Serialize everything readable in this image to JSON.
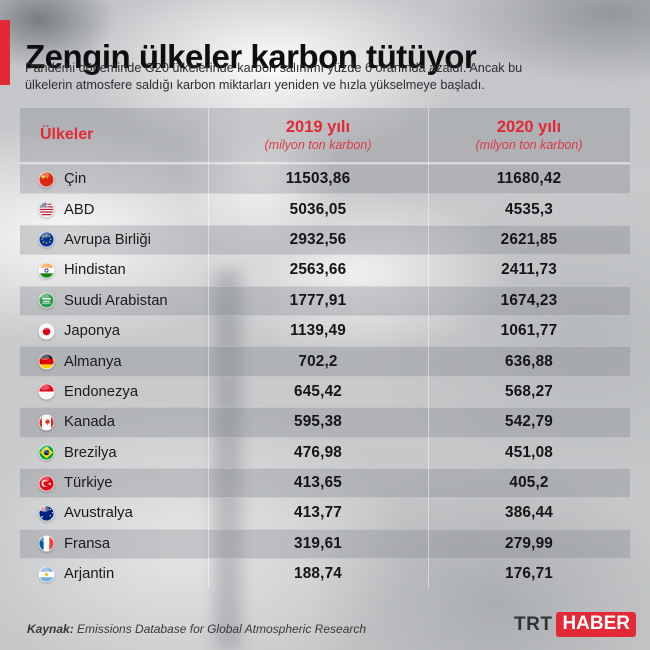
{
  "accent_red": "#e22936",
  "header": {
    "title": "Zengin ülkeler karbon tütüyor",
    "subtitle_line1": "Pandemi döneminde G20 ülkelerinde karbon salınımı yüzde 6 oranında  azaldı. Ancak bu",
    "subtitle_line2": "ülkelerin atmosfere saldığı karbon miktarları yeniden ve hızla yükselmeye başladı."
  },
  "table": {
    "columns": {
      "country": "Ülkeler",
      "y2019": "2019 yılı",
      "y2019_sub": "(milyon ton karbon)",
      "y2020": "2020 yılı",
      "y2020_sub": "(milyon ton karbon)"
    },
    "rows": [
      {
        "country": "Çin",
        "flag": "china",
        "v2019": "11503,86",
        "v2020": "11680,42"
      },
      {
        "country": "ABD",
        "flag": "usa",
        "v2019": "5036,05",
        "v2020": "4535,3"
      },
      {
        "country": "Avrupa Birliği",
        "flag": "eu",
        "v2019": "2932,56",
        "v2020": "2621,85"
      },
      {
        "country": "Hindistan",
        "flag": "india",
        "v2019": "2563,66",
        "v2020": "2411,73"
      },
      {
        "country": "Suudi Arabistan",
        "flag": "saudi-arabia",
        "v2019": "1777,91",
        "v2020": "1674,23"
      },
      {
        "country": "Japonya",
        "flag": "japan",
        "v2019": "1139,49",
        "v2020": "1061,77"
      },
      {
        "country": "Almanya",
        "flag": "germany",
        "v2019": "702,2",
        "v2020": "636,88"
      },
      {
        "country": "Endonezya",
        "flag": "indonesia",
        "v2019": "645,42",
        "v2020": "568,27"
      },
      {
        "country": "Kanada",
        "flag": "canada",
        "v2019": "595,38",
        "v2020": "542,79"
      },
      {
        "country": "Brezilya",
        "flag": "brazil",
        "v2019": "476,98",
        "v2020": "451,08"
      },
      {
        "country": "Türkiye",
        "flag": "turkey",
        "v2019": "413,65",
        "v2020": "405,2"
      },
      {
        "country": "Avustralya",
        "flag": "australia",
        "v2019": "413,77",
        "v2020": "386,44"
      },
      {
        "country": "Fransa",
        "flag": "france",
        "v2019": "319,61",
        "v2020": "279,99"
      },
      {
        "country": "Arjantin",
        "flag": "argentina",
        "v2019": "188,74",
        "v2020": "176,71"
      }
    ]
  },
  "footer": {
    "source_label": "Kaynak:",
    "source_text": " Emissions Database for Global Atmospheric Research",
    "logo_trt": "TRT",
    "logo_haber": "HABER"
  },
  "chart_data": {
    "type": "table",
    "title": "Zengin ülkeler karbon tütüyor",
    "subtitle": "Pandemi döneminde G20 ülkelerinde karbon salınımı yüzde 6 oranında azaldı. Ancak bu ülkelerin atmosfere saldığı karbon miktarları yeniden ve hızla yükselmeye başladı.",
    "columns": [
      "Ülkeler",
      "2019 yılı (milyon ton karbon)",
      "2020 yılı (milyon ton karbon)"
    ],
    "rows": [
      [
        "Çin",
        11503.86,
        11680.42
      ],
      [
        "ABD",
        5036.05,
        4535.3
      ],
      [
        "Avrupa Birliği",
        2932.56,
        2621.85
      ],
      [
        "Hindistan",
        2563.66,
        2411.73
      ],
      [
        "Suudi Arabistan",
        1777.91,
        1674.23
      ],
      [
        "Japonya",
        1139.49,
        1061.77
      ],
      [
        "Almanya",
        702.2,
        636.88
      ],
      [
        "Endonezya",
        645.42,
        568.27
      ],
      [
        "Kanada",
        595.38,
        542.79
      ],
      [
        "Brezilya",
        476.98,
        451.08
      ],
      [
        "Türkiye",
        413.65,
        405.2
      ],
      [
        "Avustralya",
        413.77,
        386.44
      ],
      [
        "Fransa",
        319.61,
        279.99
      ],
      [
        "Arjantin",
        188.74,
        176.71
      ]
    ],
    "source": "Emissions Database for Global Atmospheric Research"
  }
}
